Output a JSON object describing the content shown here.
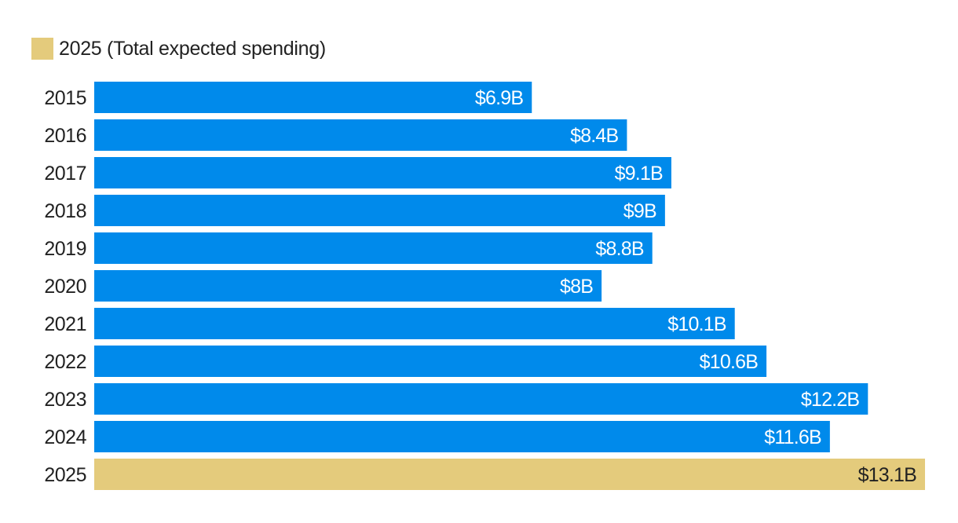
{
  "chart_data": {
    "type": "bar",
    "orientation": "horizontal",
    "categories": [
      "2015",
      "2016",
      "2017",
      "2018",
      "2019",
      "2020",
      "2021",
      "2022",
      "2023",
      "2024",
      "2025"
    ],
    "values": [
      6.9,
      8.4,
      9.1,
      9.0,
      8.8,
      8.0,
      10.1,
      10.6,
      12.2,
      11.6,
      13.1
    ],
    "value_labels": [
      "$6.9B",
      "$8.4B",
      "$9.1B",
      "$9B",
      "$8.8B",
      "$8B",
      "$10.1B",
      "$10.6B",
      "$12.2B",
      "$11.6B",
      "$13.1B"
    ],
    "highlight_category": "2025",
    "legend": {
      "entries": [
        {
          "label": "2025 (Total expected spending)",
          "color": "#E4CB7C"
        }
      ],
      "placement": "top-left"
    },
    "colors": {
      "bar": "#008AEB",
      "highlight": "#E4CB7C",
      "label_on_bar": "#FFFFFF",
      "label_on_highlight": "#222222"
    },
    "xlim": [
      0,
      13.1
    ],
    "grid": false,
    "title": "",
    "xlabel": "",
    "ylabel": ""
  }
}
